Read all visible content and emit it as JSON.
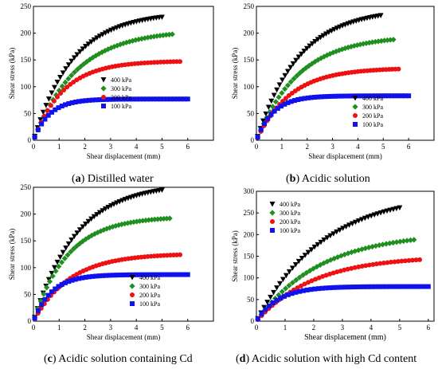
{
  "chart_data": [
    {
      "type": "scatter",
      "panel_label": "a",
      "caption": "Distilled water",
      "xlabel": "Shear displacement (mm)",
      "ylabel": "Shear stress (kPa)",
      "xlim": [
        0,
        7
      ],
      "ylim": [
        0,
        250
      ],
      "xticks": [
        0,
        1,
        2,
        3,
        4,
        5,
        6
      ],
      "yticks": [
        0,
        50,
        100,
        150,
        200,
        250
      ],
      "grid": false,
      "legend_position": "lower-center",
      "series": [
        {
          "name": "400 kPa",
          "marker": "triangle-down",
          "color": "#000000",
          "xmax": 5.0,
          "ymax": 230,
          "k": 0.65
        },
        {
          "name": "300 kPa",
          "marker": "diamond",
          "color": "#1f8f1f",
          "xmax": 5.4,
          "ymax": 198,
          "k": 0.6
        },
        {
          "name": "200 kPa",
          "marker": "circle",
          "color": "#ee1111",
          "xmax": 5.7,
          "ymax": 147,
          "k": 0.85
        },
        {
          "name": "100 kPa",
          "marker": "square",
          "color": "#1111ee",
          "xmax": 6.0,
          "ymax": 77,
          "k": 1.6
        }
      ]
    },
    {
      "type": "scatter",
      "panel_label": "b",
      "caption": "Acidic solution",
      "xlabel": "Shear displacement (mm)",
      "ylabel": "Shear stress (kPa)",
      "xlim": [
        0,
        7
      ],
      "ylim": [
        0,
        250
      ],
      "xticks": [
        0,
        1,
        2,
        3,
        4,
        5,
        6
      ],
      "yticks": [
        0,
        50,
        100,
        150,
        200,
        250
      ],
      "grid": false,
      "legend_position": "lower-right",
      "series": [
        {
          "name": "400 kPa",
          "marker": "triangle-down",
          "color": "#000000",
          "xmax": 4.9,
          "ymax": 233,
          "k": 0.6
        },
        {
          "name": "300 kPa",
          "marker": "diamond",
          "color": "#1f8f1f",
          "xmax": 5.4,
          "ymax": 188,
          "k": 0.6
        },
        {
          "name": "200 kPa",
          "marker": "circle",
          "color": "#ee1111",
          "xmax": 5.6,
          "ymax": 133,
          "k": 0.75
        },
        {
          "name": "100 kPa",
          "marker": "square",
          "color": "#1111ee",
          "xmax": 6.0,
          "ymax": 83,
          "k": 1.5
        }
      ]
    },
    {
      "type": "scatter",
      "panel_label": "c",
      "caption": "Acidic solution containing Cd",
      "xlabel": "Shear displacement (mm)",
      "ylabel": "Shear stress (kPa)",
      "xlim": [
        0,
        7
      ],
      "ylim": [
        0,
        250
      ],
      "xticks": [
        0,
        1,
        2,
        3,
        4,
        5,
        6
      ],
      "yticks": [
        0,
        50,
        100,
        150,
        200,
        250
      ],
      "grid": false,
      "legend_position": "lower-right",
      "series": [
        {
          "name": "400 kPa",
          "marker": "triangle-down",
          "color": "#000000",
          "xmax": 5.0,
          "ymax": 245,
          "k": 0.6
        },
        {
          "name": "300 kPa",
          "marker": "diamond",
          "color": "#1f8f1f",
          "xmax": 5.3,
          "ymax": 192,
          "k": 0.75
        },
        {
          "name": "200 kPa",
          "marker": "circle",
          "color": "#ee1111",
          "xmax": 5.7,
          "ymax": 124,
          "k": 0.7
        },
        {
          "name": "100 kPa",
          "marker": "square",
          "color": "#1111ee",
          "xmax": 6.0,
          "ymax": 87,
          "k": 1.4
        }
      ]
    },
    {
      "type": "scatter",
      "panel_label": "d",
      "caption": "Acidic solution with high Cd content",
      "xlabel": "Shear displacement (mm)",
      "ylabel": "Shear stress (kPa)",
      "xlim": [
        0,
        6.2
      ],
      "ylim": [
        0,
        300
      ],
      "xticks": [
        0,
        1,
        2,
        3,
        4,
        5,
        6
      ],
      "yticks": [
        0,
        50,
        100,
        150,
        200,
        250,
        300
      ],
      "grid": false,
      "legend_position": "top-left",
      "series": [
        {
          "name": "400 kPa",
          "marker": "triangle-down",
          "color": "#000000",
          "xmax": 5.0,
          "ymax": 262,
          "k": 0.42
        },
        {
          "name": "300 kPa",
          "marker": "diamond",
          "color": "#1f8f1f",
          "xmax": 5.5,
          "ymax": 188,
          "k": 0.45
        },
        {
          "name": "200 kPa",
          "marker": "circle",
          "color": "#ee1111",
          "xmax": 5.7,
          "ymax": 142,
          "k": 0.5
        },
        {
          "name": "100 kPa",
          "marker": "square",
          "color": "#1111ee",
          "xmax": 6.0,
          "ymax": 80,
          "k": 1.3
        }
      ]
    }
  ]
}
